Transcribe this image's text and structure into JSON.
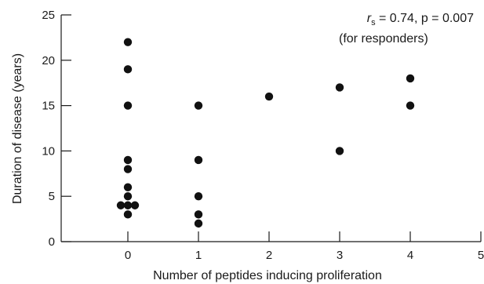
{
  "chart_data": {
    "type": "scatter",
    "xlabel": "Number of peptides inducing proliferation",
    "ylabel": "Duration of disease (years)",
    "xlim": [
      -1,
      5
    ],
    "ylim": [
      0,
      25
    ],
    "x_ticks": [
      0,
      1,
      2,
      3,
      4,
      5
    ],
    "y_ticks": [
      0,
      5,
      10,
      15,
      20,
      25
    ],
    "x_tick_labels": [
      "0",
      "1",
      "2",
      "3",
      "4",
      "5"
    ],
    "y_tick_labels": [
      "0",
      "5",
      "10",
      "15",
      "20",
      "25"
    ],
    "annotation": {
      "symbol": "r",
      "subscript": "s",
      "stat_text": " = 0.74, p = 0.007",
      "line2": "(for responders)"
    },
    "grid": false,
    "points": [
      {
        "x": 0,
        "y": 22
      },
      {
        "x": 0,
        "y": 19
      },
      {
        "x": 0,
        "y": 15
      },
      {
        "x": 0,
        "y": 9
      },
      {
        "x": 0,
        "y": 8
      },
      {
        "x": 0,
        "y": 6
      },
      {
        "x": 0,
        "y": 5
      },
      {
        "x": -0.1,
        "y": 4
      },
      {
        "x": 0,
        "y": 4
      },
      {
        "x": 0.1,
        "y": 4
      },
      {
        "x": 0,
        "y": 3
      },
      {
        "x": 1,
        "y": 15
      },
      {
        "x": 1,
        "y": 9
      },
      {
        "x": 1,
        "y": 5
      },
      {
        "x": 1,
        "y": 3
      },
      {
        "x": 1,
        "y": 2
      },
      {
        "x": 2,
        "y": 16
      },
      {
        "x": 3,
        "y": 17
      },
      {
        "x": 3,
        "y": 10
      },
      {
        "x": 4,
        "y": 18
      },
      {
        "x": 4,
        "y": 15
      }
    ]
  }
}
